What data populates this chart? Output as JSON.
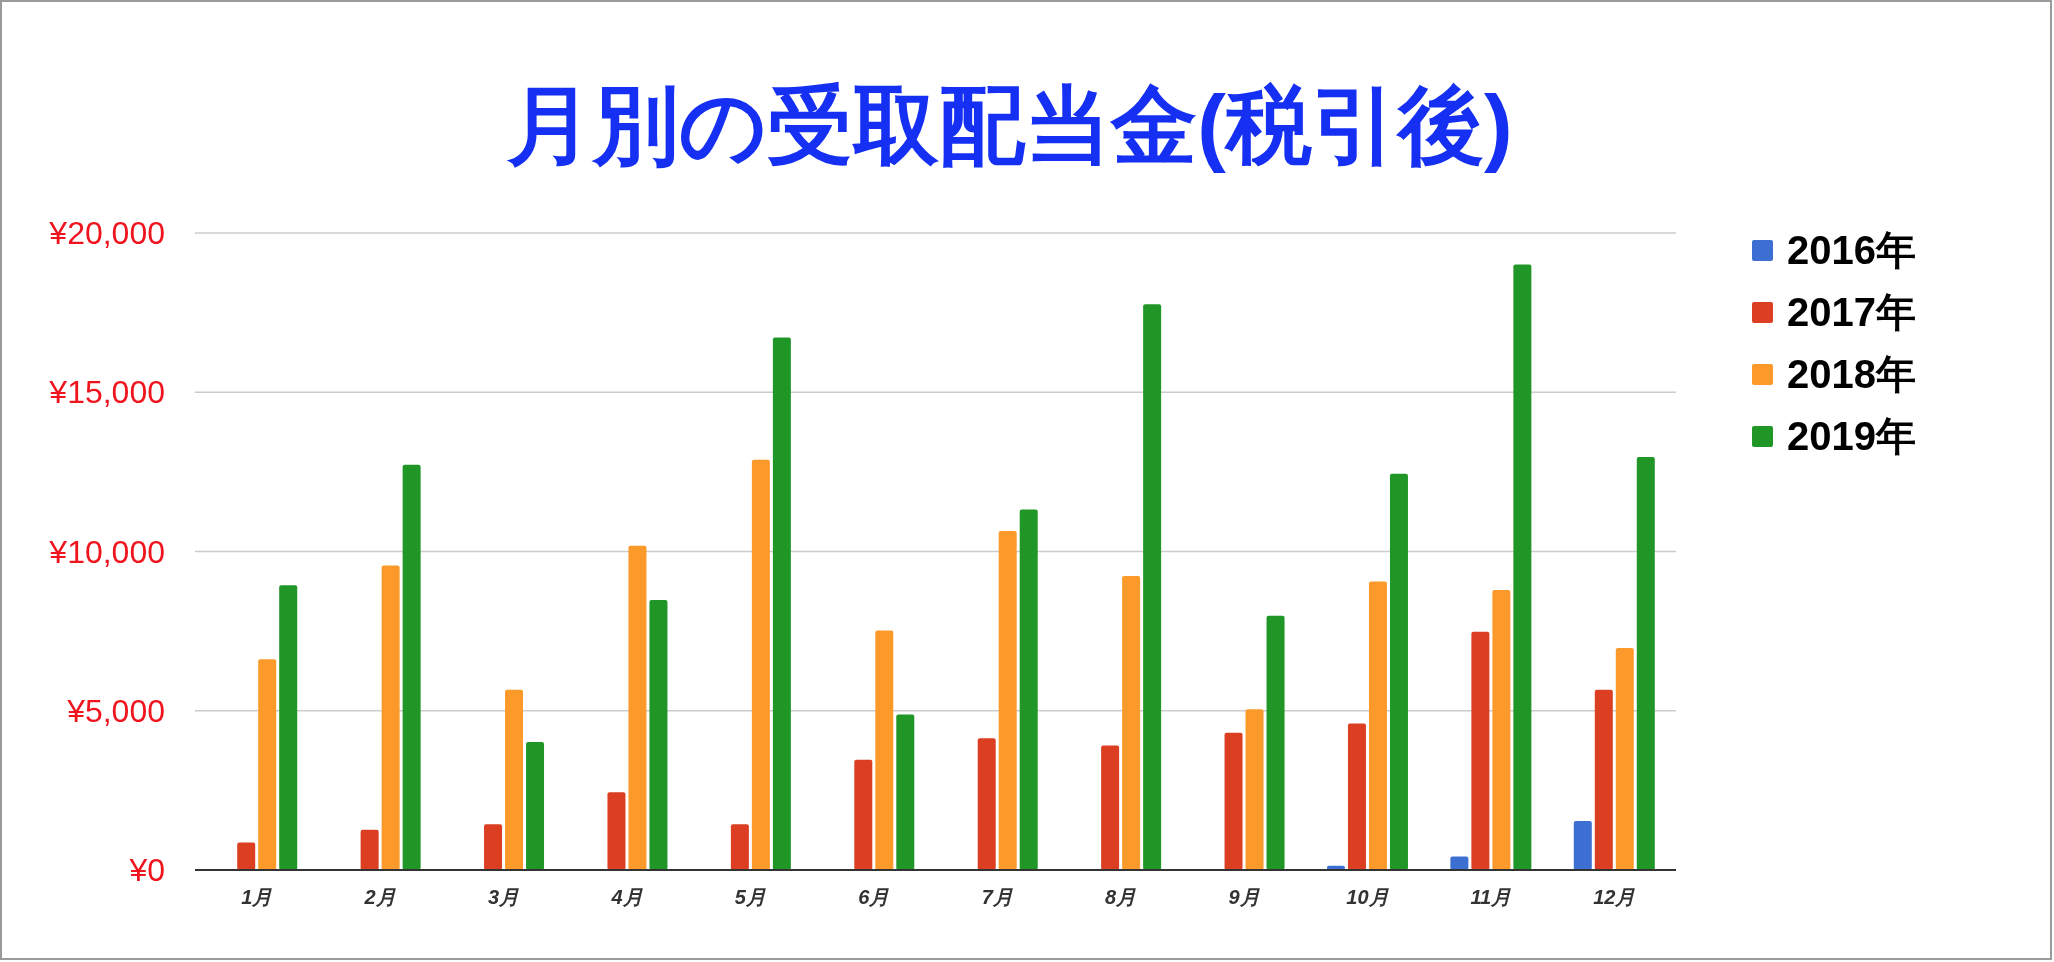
{
  "chart_data": {
    "type": "bar",
    "title": "月別の受取配当金(税引後)",
    "categories": [
      "1月",
      "2月",
      "3月",
      "4月",
      "5月",
      "6月",
      "7月",
      "8月",
      "9月",
      "10月",
      "11月",
      "12月"
    ],
    "series": [
      {
        "name": "2016年",
        "color": "#3c6fd1",
        "values": [
          null,
          null,
          null,
          null,
          null,
          null,
          null,
          null,
          null,
          130,
          420,
          1540
        ]
      },
      {
        "name": "2017年",
        "color": "#db3e21",
        "values": [
          860,
          1260,
          1440,
          2440,
          1440,
          3460,
          4140,
          3910,
          4310,
          4600,
          7480,
          5660
        ]
      },
      {
        "name": "2018年",
        "color": "#fb9a2a",
        "values": [
          6620,
          9560,
          5660,
          10180,
          12880,
          7520,
          10640,
          9230,
          5050,
          9060,
          8790,
          6970
        ]
      },
      {
        "name": "2019年",
        "color": "#1f9626",
        "values": [
          8940,
          12720,
          4020,
          8480,
          16720,
          4880,
          11320,
          17760,
          7980,
          12440,
          19010,
          12970
        ]
      }
    ],
    "ylim": [
      0,
      20000
    ],
    "yticks": [
      {
        "value": 0,
        "label": "¥0"
      },
      {
        "value": 5000,
        "label": "¥5,000"
      },
      {
        "value": 10000,
        "label": "¥10,000"
      },
      {
        "value": 15000,
        "label": "¥15,000"
      },
      {
        "value": 20000,
        "label": "¥20,000"
      }
    ],
    "grid": "y",
    "legend": "top right"
  }
}
